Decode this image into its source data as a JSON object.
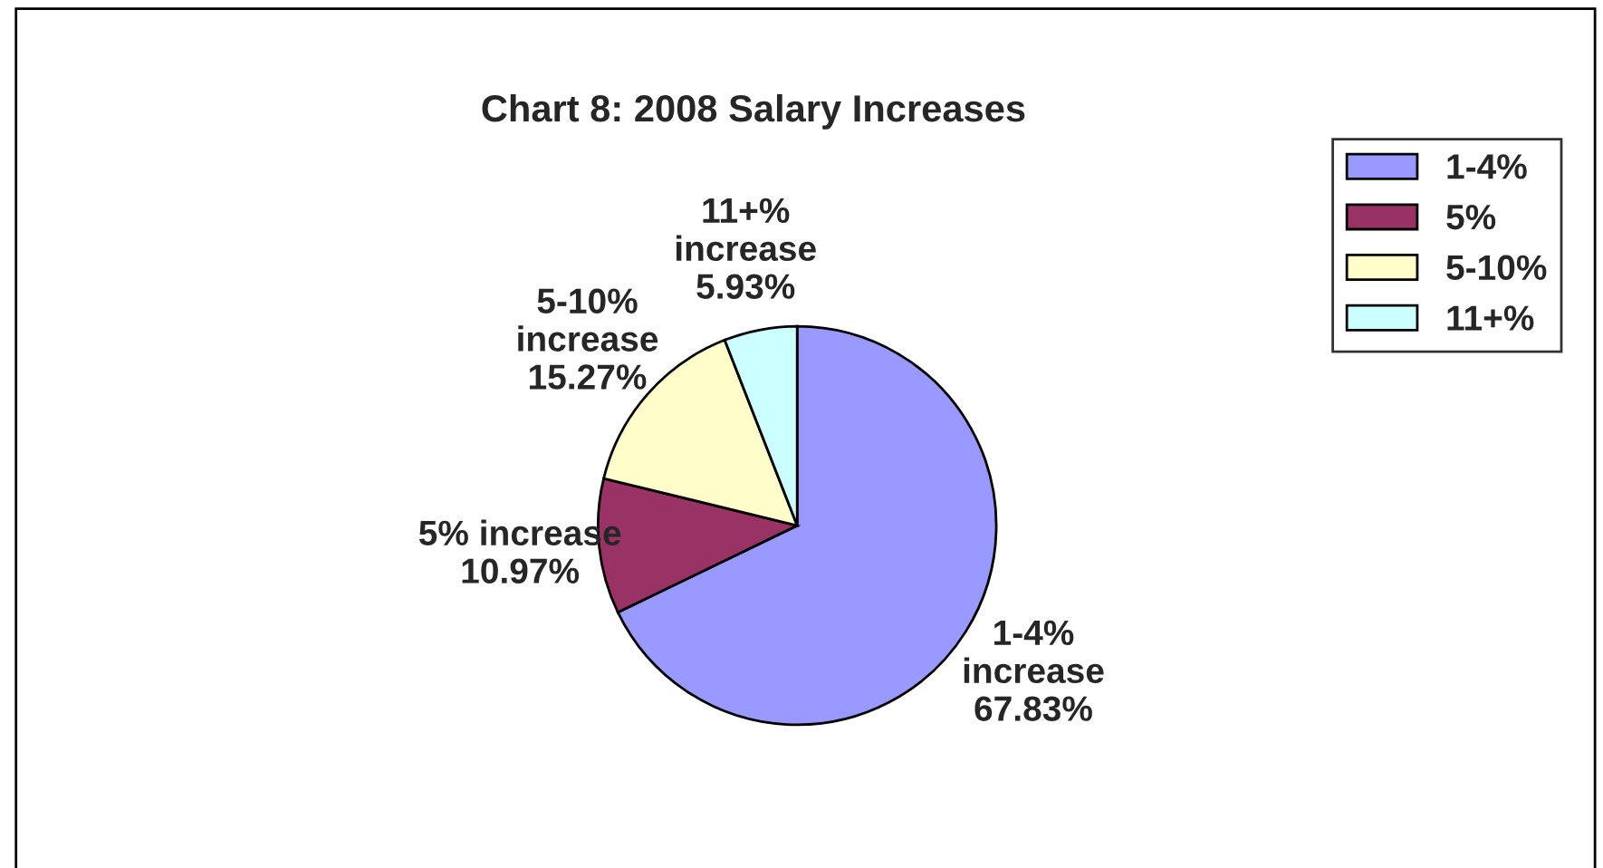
{
  "chart_data": {
    "type": "pie",
    "title": "Chart 8: 2008 Salary Increases",
    "categories": [
      "1-4%",
      "5%",
      "5-10%",
      "11+%"
    ],
    "values": [
      67.83,
      10.97,
      15.27,
      5.93
    ],
    "colors": [
      "#9999ff",
      "#993366",
      "#ffffcc",
      "#ccffff"
    ],
    "value_labels": [
      "1-4%\nincrease\n67.83%",
      "5% increase\n10.97%",
      "5-10%\nincrease\n15.27%",
      "11+%\nincrease\n5.93%"
    ],
    "legend": "right"
  }
}
